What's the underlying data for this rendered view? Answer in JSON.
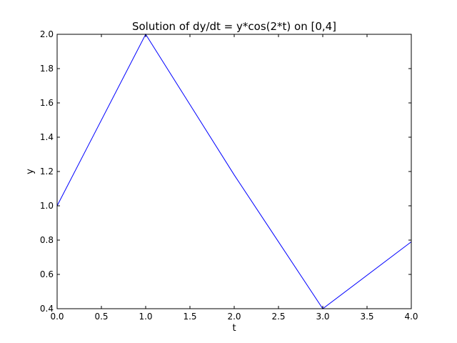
{
  "chart_data": {
    "type": "line",
    "title": "Solution of dy/dt = y*cos(2*t) on [0,4]",
    "xlabel": "t",
    "ylabel": "y",
    "xlim": [
      0.0,
      4.0
    ],
    "ylim": [
      0.4,
      2.0
    ],
    "xticks": [
      "0.0",
      "0.5",
      "1.0",
      "1.5",
      "2.0",
      "2.5",
      "3.0",
      "3.5",
      "4.0"
    ],
    "yticks": [
      "0.4",
      "0.6",
      "0.8",
      "1.0",
      "1.2",
      "1.4",
      "1.6",
      "1.8",
      "2.0"
    ],
    "grid": false,
    "series": [
      {
        "color": "#0000ff",
        "x": [
          0.0,
          1.0,
          2.0,
          3.0,
          4.0
        ],
        "y": [
          1.0,
          2.0,
          1.18,
          0.4,
          0.79
        ]
      }
    ]
  }
}
